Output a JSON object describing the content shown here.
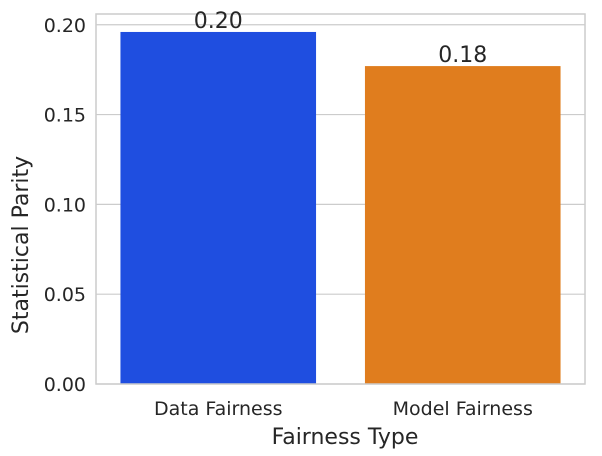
{
  "chart_data": {
    "type": "bar",
    "categories": [
      "Data Fairness",
      "Model Fairness"
    ],
    "values": [
      0.196,
      0.177
    ],
    "data_labels": [
      "0.20",
      "0.18"
    ],
    "xlabel": "Fairness  Type",
    "ylabel": "Statistical Parity",
    "ylim": [
      0,
      0.206
    ],
    "yticks": [
      0,
      0.05,
      0.1,
      0.15,
      0.2
    ],
    "ytick_labels": [
      "0.00",
      "0.05",
      "0.10",
      "0.15",
      "0.20"
    ],
    "grid": "horizontal",
    "colors": [
      "#1f4ee0",
      "#e07d1e"
    ]
  }
}
